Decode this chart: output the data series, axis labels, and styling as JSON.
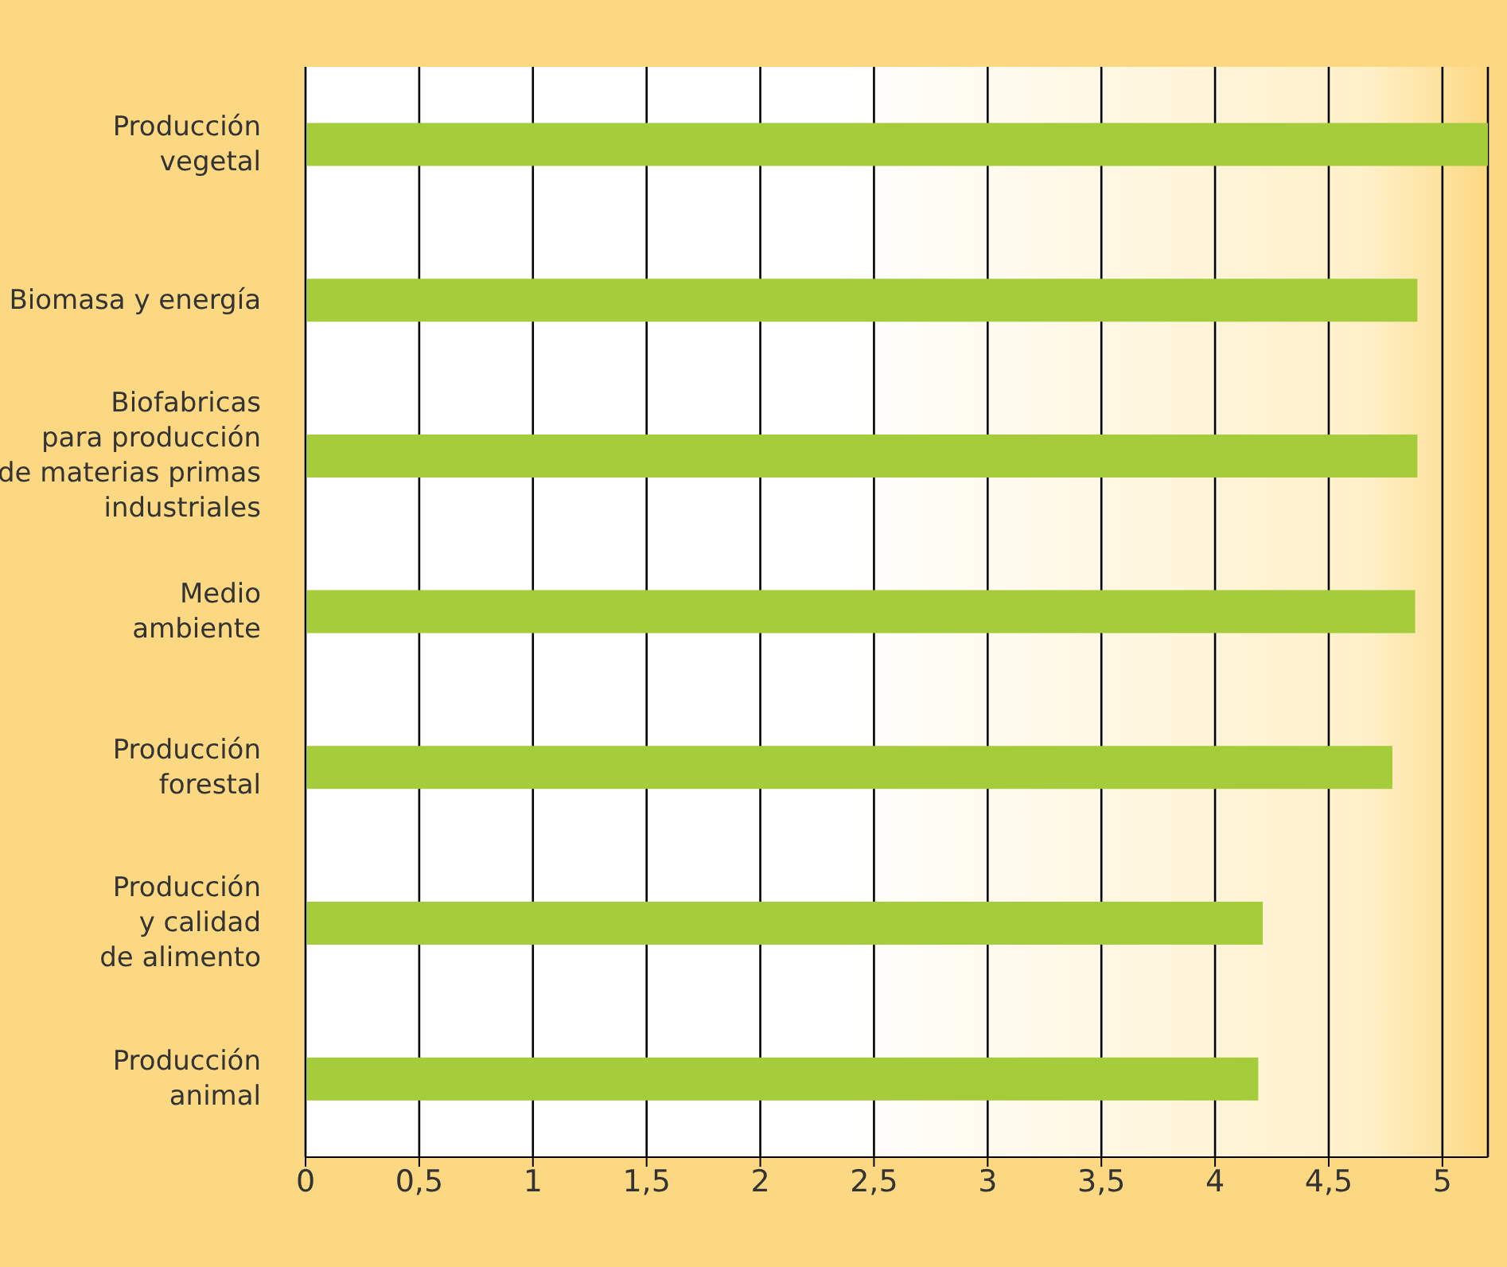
{
  "chart_data": {
    "type": "bar",
    "orientation": "horizontal",
    "categories": [
      "Producción\nvegetal",
      "Biomasa y energía",
      "Biofabricas\npara producción\nde materias primas\nindustriales",
      "Medio\nambiente",
      "Producción\nforestal",
      "Producción\ny calidad\nde alimento",
      "Producción\nanimal"
    ],
    "values": [
      5.2,
      4.89,
      4.89,
      4.88,
      4.78,
      4.21,
      4.19
    ],
    "color": "#a5cc3a",
    "xlim": [
      0,
      5.2
    ],
    "xticks": [
      0,
      {
        "value": 0.5,
        "label": "0,5"
      },
      1,
      {
        "value": 1.5,
        "label": "1,5"
      },
      2,
      {
        "value": 2.5,
        "label": "2,5"
      },
      3,
      {
        "value": 3.5,
        "label": "3,5"
      },
      4,
      {
        "value": 4.5,
        "label": "4,5"
      },
      5
    ],
    "grid": "x"
  }
}
